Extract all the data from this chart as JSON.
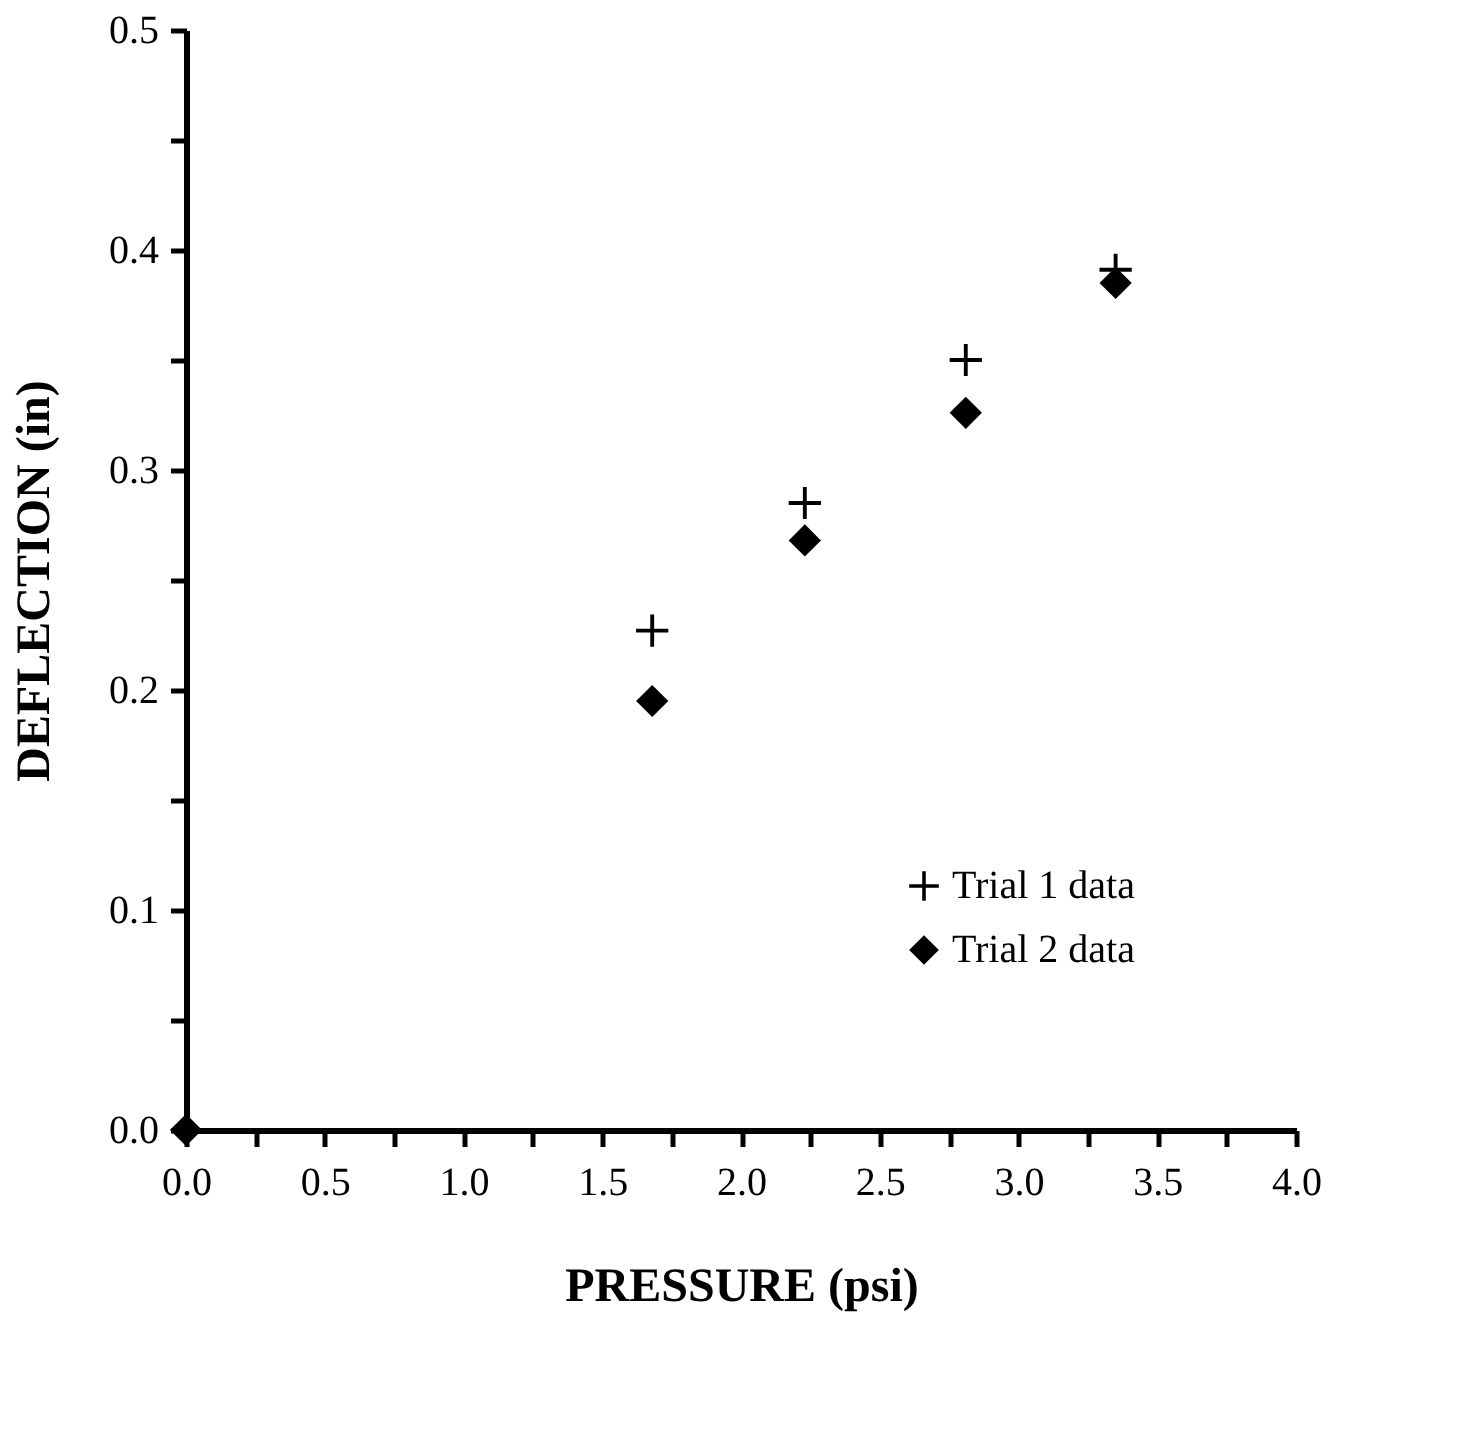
{
  "chart_data": {
    "type": "scatter",
    "xlabel": "PRESSURE  (psi)",
    "ylabel": "DEFLECTION  (in)",
    "series": [
      {
        "name": "Trial 1 data",
        "color": "#000000",
        "marker": "cross",
        "x": [
          1.68,
          2.23,
          2.81,
          3.35
        ],
        "values": [
          0.227,
          0.285,
          0.35,
          0.391
        ]
      },
      {
        "name": "Trial 2 data",
        "color": "#000000",
        "marker": "diamond",
        "x": [
          0,
          1.68,
          2.23,
          2.81,
          3.35
        ],
        "values": [
          0,
          0.195,
          0.268,
          0.326,
          0.385
        ]
      }
    ],
    "xlim": [
      0,
      4
    ],
    "ylim": [
      0,
      0.5
    ],
    "xticks": [
      {
        "value": 0,
        "label": "0.0"
      },
      {
        "value": 0.25,
        "label": null
      },
      0.5,
      {
        "value": 0.75,
        "label": null
      },
      {
        "value": 1,
        "label": "1.0"
      },
      {
        "value": 1.25,
        "label": null
      },
      1.5,
      {
        "value": 1.75,
        "label": null
      },
      {
        "value": 2,
        "label": "2.0"
      },
      {
        "value": 2.25,
        "label": null
      },
      2.5,
      {
        "value": 2.75,
        "label": null
      },
      {
        "value": 3,
        "label": "3.0"
      },
      {
        "value": 3.25,
        "label": null
      },
      3.5,
      {
        "value": 3.75,
        "label": null
      },
      {
        "value": 4,
        "label": "4.0"
      }
    ],
    "yticks": [
      {
        "value": 0,
        "label": "0.0"
      },
      {
        "value": 0.05,
        "label": null
      },
      0.1,
      {
        "value": 0.15,
        "label": null
      },
      0.2,
      {
        "value": 0.25,
        "label": null
      },
      0.3,
      {
        "value": 0.35,
        "label": null
      },
      0.4,
      {
        "value": 0.45,
        "label": null
      },
      0.5
    ],
    "grid": false,
    "legend": "bottom right"
  }
}
